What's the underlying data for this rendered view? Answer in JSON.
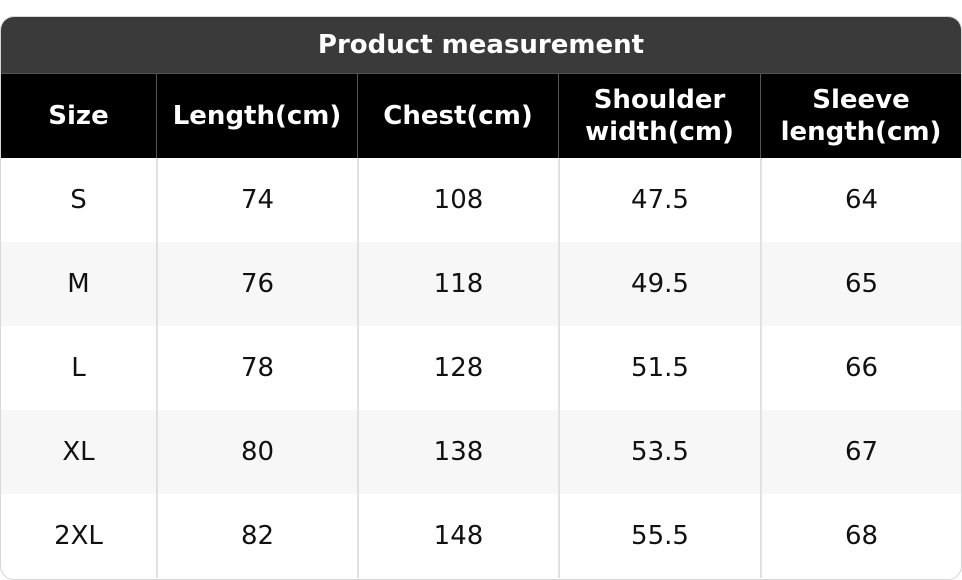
{
  "table": {
    "title": "Product measurement",
    "header": [
      "Size",
      "Length(cm)",
      "Chest(cm)",
      "Shoulder width(cm)",
      "Sleeve length(cm)"
    ],
    "rows": [
      [
        "S",
        74,
        108,
        47.5,
        64
      ],
      [
        "M",
        76,
        118,
        49.5,
        65
      ],
      [
        "L",
        78,
        128,
        51.5,
        66
      ],
      [
        "XL",
        80,
        138,
        53.5,
        67
      ],
      [
        "2XL",
        82,
        148,
        55.5,
        68
      ]
    ]
  }
}
